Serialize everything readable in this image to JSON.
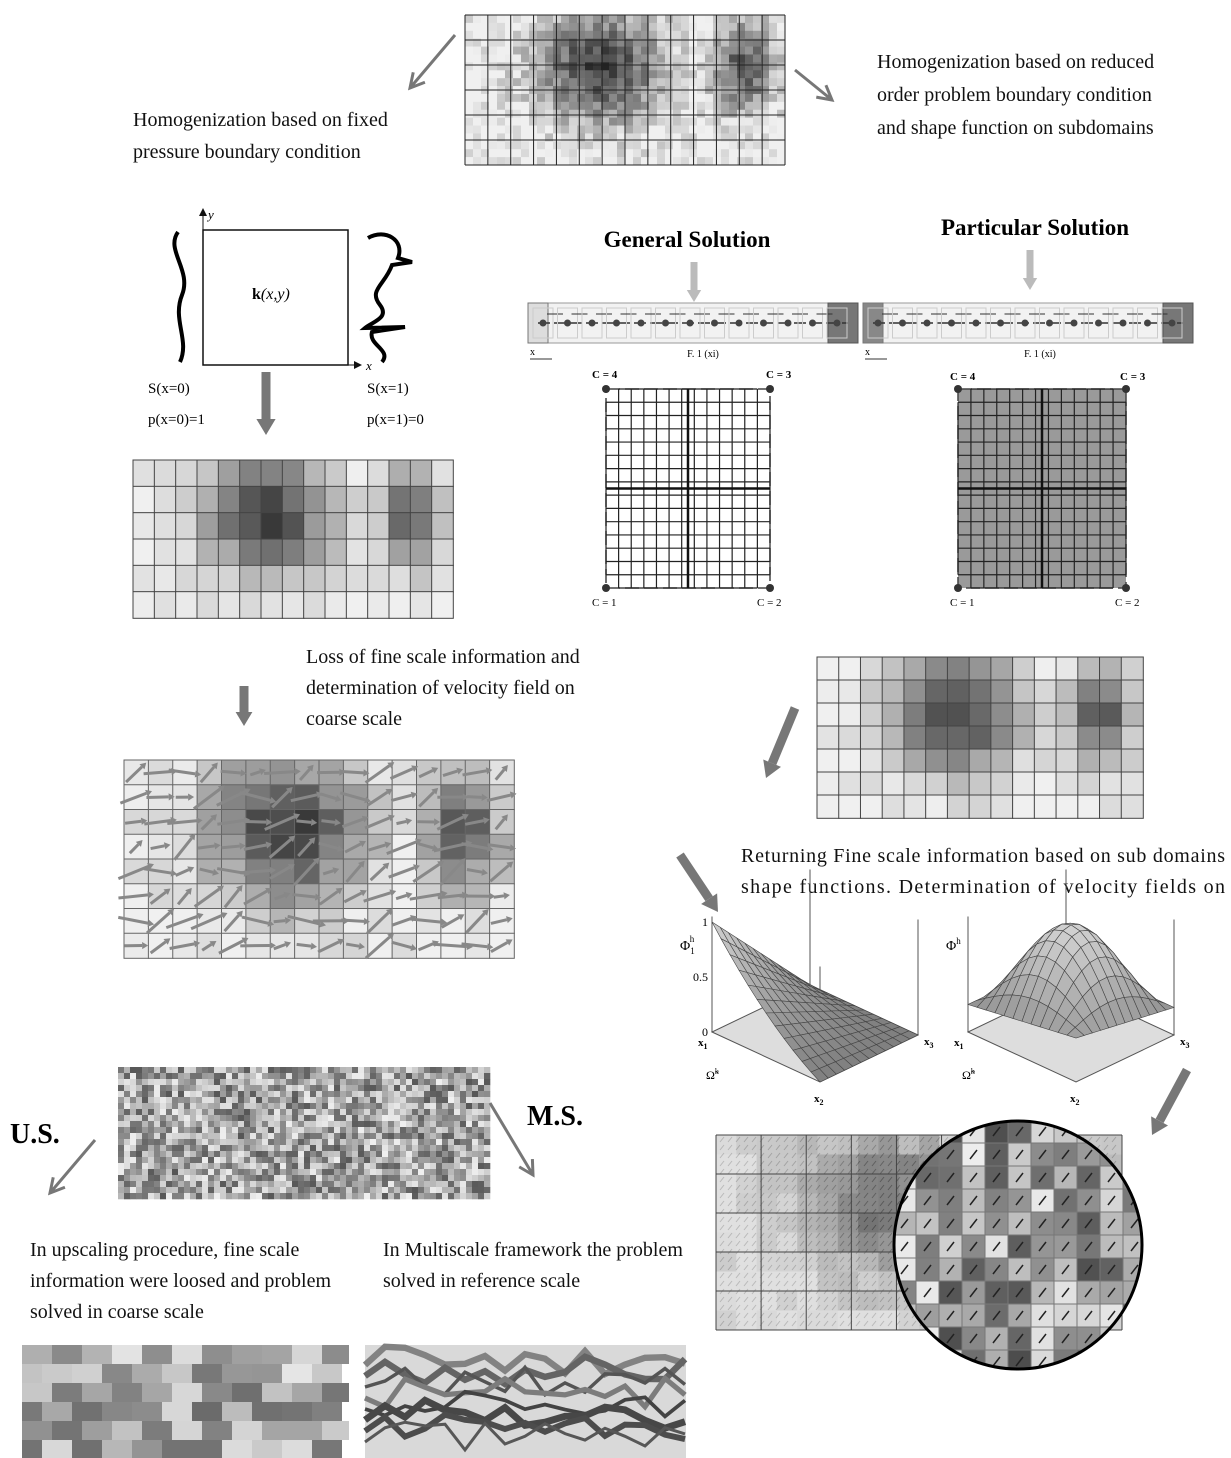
{
  "top_left_caption": [
    "Homogenization based on fixed",
    "pressure boundary condition"
  ],
  "top_right_caption": [
    "Homogenization based on reduced",
    "order problem boundary condition",
    "and shape function on subdomains"
  ],
  "cell_diagram": {
    "y_axis": "y",
    "x_axis": "x",
    "k_symbol": "k",
    "k_args": "(x,y)",
    "left_saturation": "S(x=0)",
    "left_pressure": "p(x=0)=1",
    "right_saturation": "S(x=1)",
    "right_pressure": "p(x=1)=0"
  },
  "coarse_caption": [
    "Loss of fine scale information and",
    "determination of velocity field on",
    "coarse scale"
  ],
  "general_solution": {
    "title": "General Solution",
    "axis": "x",
    "function": "F. 1 (xi)",
    "corners": [
      "C = 4",
      "C = 3",
      "C = 1",
      "C = 2"
    ]
  },
  "particular_solution": {
    "title": "Particular Solution",
    "axis": "x",
    "function": "F. 1 (xi)",
    "corners": [
      "C = 4",
      "C = 3",
      "C = 1",
      "C = 2"
    ]
  },
  "returning_caption": [
    "Returning Fine scale information based on sub domains",
    "shape functions. Determination of velocity fields on"
  ],
  "shape_plot_1": {
    "symbol": "Φ",
    "subscript": "1",
    "superscript": "h",
    "ticks": [
      1,
      0.5,
      0
    ],
    "corners": [
      {
        "base": "x",
        "sub": "1"
      },
      {
        "base": "x",
        "sub": "2"
      },
      {
        "base": "x",
        "sub": "3"
      }
    ],
    "domain": {
      "base": "Ω̃",
      "sup": "k"
    }
  },
  "shape_plot_2": {
    "symbol": "Φ",
    "superscript": "h",
    "corners": [
      {
        "base": "x",
        "sub": "1"
      },
      {
        "base": "x",
        "sub": "2"
      },
      {
        "base": "x",
        "sub": "3"
      }
    ],
    "domain": {
      "base": "Ω̃",
      "sup": "h"
    }
  },
  "us_label": "U.S.",
  "ms_label": "M.S.",
  "us_caption": [
    "In upscaling procedure, fine scale",
    "information were loosed and problem",
    "solved in coarse scale"
  ],
  "ms_caption": [
    "In Multiscale framework the problem",
    "solved in reference scale"
  ]
}
